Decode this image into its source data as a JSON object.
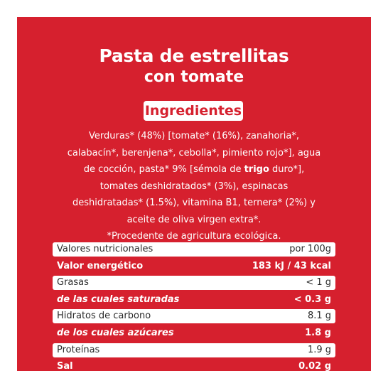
{
  "product": {
    "title_line1": "Pasta de estrellitas",
    "title_line2": "con tomate"
  },
  "ingredients": {
    "heading": "Ingredientes",
    "lines": [
      {
        "pre": "Verduras* (48%) [tomate* (16%), zanahoria*,",
        "bold": "",
        "post": ""
      },
      {
        "pre": "calabacín*, berenjena*, cebolla*, pimiento rojo*], agua",
        "bold": "",
        "post": ""
      },
      {
        "pre": "de cocción, pasta* 9% [sémola de ",
        "bold": "trigo",
        "post": " duro*],"
      },
      {
        "pre": "tomates deshidratados* (3%), espinacas",
        "bold": "",
        "post": ""
      },
      {
        "pre": "deshidratadas* (1.5%), vitamina B1, ternera* (2%) y",
        "bold": "",
        "post": ""
      },
      {
        "pre": "aceite de oliva virgen extra*.",
        "bold": "",
        "post": ""
      },
      {
        "pre": "*Procedente de agricultura ecológica.",
        "bold": "",
        "post": ""
      }
    ]
  },
  "nutrition": {
    "rows": [
      {
        "label": "Valores nutricionales",
        "value": "por 100g"
      },
      {
        "label": "Valor energético",
        "value": "183 kJ / 43 kcal"
      },
      {
        "label": "Grasas",
        "value": "< 1 g"
      },
      {
        "label": "de las cuales saturadas",
        "value": "< 0.3 g"
      },
      {
        "label": "Hidratos de carbono",
        "value": "8.1 g"
      },
      {
        "label": "de los cuales azúcares",
        "value": "1.8 g"
      },
      {
        "label": "Proteínas",
        "value": "1.9 g"
      },
      {
        "label": "Sal",
        "value": "0.02 g"
      }
    ]
  },
  "colors": {
    "brand_red": "#d6202e",
    "text_on_white": "#2a2a2a",
    "white": "#ffffff"
  }
}
